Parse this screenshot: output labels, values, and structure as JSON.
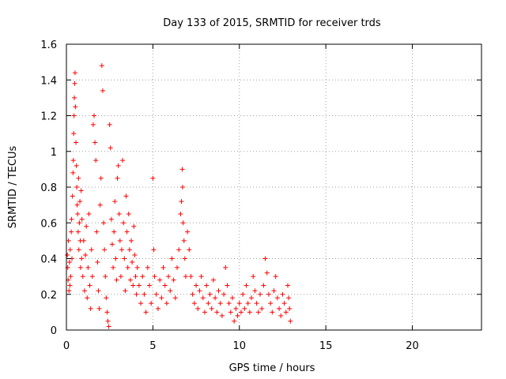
{
  "chart_data": {
    "type": "scatter",
    "title": "Day 133 of 2015, SRMTID for receiver trds",
    "xlabel": "GPS time / hours",
    "ylabel": "SRMTID / TECUs",
    "xlim": [
      0,
      24
    ],
    "ylim": [
      0,
      1.6
    ],
    "xticks": [
      "0",
      "5",
      "10",
      "15",
      "20"
    ],
    "yticks": [
      "0",
      "0.2",
      "0.4",
      "0.6",
      "0.8",
      "1",
      "1.2",
      "1.4",
      "1.6"
    ],
    "grid": true,
    "marker": "+",
    "color": "#ff0000",
    "series": [
      {
        "name": "SRMTID",
        "points": [
          [
            0.05,
            0.42
          ],
          [
            0.08,
            0.35
          ],
          [
            0.1,
            0.28
          ],
          [
            0.12,
            0.5
          ],
          [
            0.15,
            0.22
          ],
          [
            0.18,
            0.38
          ],
          [
            0.2,
            0.25
          ],
          [
            0.22,
            0.45
          ],
          [
            0.25,
            0.3
          ],
          [
            0.28,
            0.55
          ],
          [
            0.3,
            0.62
          ],
          [
            0.32,
            0.4
          ],
          [
            0.35,
            0.75
          ],
          [
            0.38,
            0.88
          ],
          [
            0.4,
            0.95
          ],
          [
            0.42,
            1.1
          ],
          [
            0.44,
            1.2
          ],
          [
            0.46,
            1.3
          ],
          [
            0.48,
            1.38
          ],
          [
            0.5,
            1.44
          ],
          [
            0.52,
            1.25
          ],
          [
            0.55,
            1.05
          ],
          [
            0.58,
            0.92
          ],
          [
            0.6,
            0.8
          ],
          [
            0.62,
            0.7
          ],
          [
            0.65,
            0.65
          ],
          [
            0.68,
            0.55
          ],
          [
            0.7,
            0.85
          ],
          [
            0.72,
            0.45
          ],
          [
            0.75,
            0.6
          ],
          [
            0.78,
            0.72
          ],
          [
            0.8,
            0.5
          ],
          [
            0.82,
            0.35
          ],
          [
            0.85,
            0.78
          ],
          [
            0.88,
            0.4
          ],
          [
            0.9,
            0.62
          ],
          [
            0.95,
            0.3
          ],
          [
            1.0,
            0.5
          ],
          [
            1.05,
            0.22
          ],
          [
            1.1,
            0.42
          ],
          [
            1.15,
            0.58
          ],
          [
            1.2,
            0.18
          ],
          [
            1.25,
            0.35
          ],
          [
            1.3,
            0.65
          ],
          [
            1.35,
            0.25
          ],
          [
            1.4,
            0.12
          ],
          [
            1.45,
            0.45
          ],
          [
            1.5,
            0.3
          ],
          [
            1.55,
            1.15
          ],
          [
            1.6,
            1.2
          ],
          [
            1.65,
            1.05
          ],
          [
            1.7,
            0.95
          ],
          [
            1.75,
            0.55
          ],
          [
            1.8,
            0.38
          ],
          [
            1.85,
            0.22
          ],
          [
            1.9,
            0.12
          ],
          [
            1.95,
            0.7
          ],
          [
            2.0,
            0.85
          ],
          [
            2.05,
            1.48
          ],
          [
            2.1,
            1.34
          ],
          [
            2.15,
            0.6
          ],
          [
            2.2,
            0.45
          ],
          [
            2.25,
            0.3
          ],
          [
            2.3,
            0.18
          ],
          [
            2.35,
            0.1
          ],
          [
            2.4,
            0.05
          ],
          [
            2.45,
            0.02
          ],
          [
            2.5,
            1.15
          ],
          [
            2.55,
            1.02
          ],
          [
            2.6,
            0.62
          ],
          [
            2.65,
            0.48
          ],
          [
            2.7,
            0.35
          ],
          [
            2.75,
            0.55
          ],
          [
            2.8,
            0.72
          ],
          [
            2.85,
            0.4
          ],
          [
            2.9,
            0.28
          ],
          [
            2.95,
            0.85
          ],
          [
            3.0,
            0.92
          ],
          [
            3.05,
            0.65
          ],
          [
            3.1,
            0.5
          ],
          [
            3.15,
            0.3
          ],
          [
            3.2,
            0.45
          ],
          [
            3.25,
            0.95
          ],
          [
            3.3,
            0.6
          ],
          [
            3.35,
            0.4
          ],
          [
            3.4,
            0.22
          ],
          [
            3.45,
            0.75
          ],
          [
            3.5,
            0.55
          ],
          [
            3.55,
            0.35
          ],
          [
            3.6,
            0.65
          ],
          [
            3.65,
            0.45
          ],
          [
            3.7,
            0.28
          ],
          [
            3.75,
            0.5
          ],
          [
            3.8,
            0.38
          ],
          [
            3.85,
            0.25
          ],
          [
            3.9,
            0.58
          ],
          [
            3.95,
            0.42
          ],
          [
            4.0,
            0.3
          ],
          [
            4.05,
            0.2
          ],
          [
            4.1,
            0.35
          ],
          [
            4.2,
            0.25
          ],
          [
            4.3,
            0.15
          ],
          [
            4.4,
            0.3
          ],
          [
            4.5,
            0.2
          ],
          [
            4.6,
            0.1
          ],
          [
            4.7,
            0.35
          ],
          [
            4.8,
            0.25
          ],
          [
            4.9,
            0.15
          ],
          [
            5.0,
            0.85
          ],
          [
            5.05,
            0.45
          ],
          [
            5.1,
            0.3
          ],
          [
            5.2,
            0.2
          ],
          [
            5.3,
            0.12
          ],
          [
            5.4,
            0.28
          ],
          [
            5.5,
            0.18
          ],
          [
            5.6,
            0.35
          ],
          [
            5.7,
            0.25
          ],
          [
            5.8,
            0.15
          ],
          [
            5.9,
            0.3
          ],
          [
            6.0,
            0.22
          ],
          [
            6.1,
            0.4
          ],
          [
            6.2,
            0.28
          ],
          [
            6.3,
            0.18
          ],
          [
            6.4,
            0.35
          ],
          [
            6.5,
            0.45
          ],
          [
            6.6,
            0.65
          ],
          [
            6.65,
            0.72
          ],
          [
            6.7,
            0.9
          ],
          [
            6.72,
            0.8
          ],
          [
            6.75,
            0.6
          ],
          [
            6.8,
            0.5
          ],
          [
            6.85,
            0.4
          ],
          [
            6.9,
            0.3
          ],
          [
            7.0,
            0.55
          ],
          [
            7.1,
            0.45
          ],
          [
            7.2,
            0.3
          ],
          [
            7.3,
            0.2
          ],
          [
            7.4,
            0.15
          ],
          [
            7.5,
            0.25
          ],
          [
            7.6,
            0.12
          ],
          [
            7.7,
            0.22
          ],
          [
            7.8,
            0.3
          ],
          [
            7.9,
            0.18
          ],
          [
            8.0,
            0.1
          ],
          [
            8.1,
            0.25
          ],
          [
            8.2,
            0.15
          ],
          [
            8.3,
            0.2
          ],
          [
            8.4,
            0.12
          ],
          [
            8.5,
            0.28
          ],
          [
            8.6,
            0.18
          ],
          [
            8.7,
            0.1
          ],
          [
            8.8,
            0.22
          ],
          [
            8.9,
            0.15
          ],
          [
            9.0,
            0.08
          ],
          [
            9.1,
            0.2
          ],
          [
            9.2,
            0.35
          ],
          [
            9.3,
            0.25
          ],
          [
            9.4,
            0.15
          ],
          [
            9.5,
            0.1
          ],
          [
            9.6,
            0.18
          ],
          [
            9.7,
            0.05
          ],
          [
            9.8,
            0.12
          ],
          [
            9.9,
            0.08
          ],
          [
            10.0,
            0.15
          ],
          [
            10.1,
            0.1
          ],
          [
            10.2,
            0.2
          ],
          [
            10.3,
            0.12
          ],
          [
            10.4,
            0.25
          ],
          [
            10.5,
            0.15
          ],
          [
            10.6,
            0.1
          ],
          [
            10.7,
            0.18
          ],
          [
            10.8,
            0.3
          ],
          [
            10.9,
            0.22
          ],
          [
            11.0,
            0.15
          ],
          [
            11.1,
            0.1
          ],
          [
            11.2,
            0.2
          ],
          [
            11.3,
            0.12
          ],
          [
            11.4,
            0.25
          ],
          [
            11.5,
            0.4
          ],
          [
            11.6,
            0.32
          ],
          [
            11.7,
            0.2
          ],
          [
            11.8,
            0.15
          ],
          [
            11.9,
            0.1
          ],
          [
            12.0,
            0.22
          ],
          [
            12.1,
            0.3
          ],
          [
            12.2,
            0.18
          ],
          [
            12.3,
            0.12
          ],
          [
            12.4,
            0.08
          ],
          [
            12.5,
            0.2
          ],
          [
            12.6,
            0.15
          ],
          [
            12.7,
            0.1
          ],
          [
            12.8,
            0.25
          ],
          [
            12.85,
            0.18
          ],
          [
            12.9,
            0.12
          ],
          [
            12.95,
            0.05
          ]
        ]
      }
    ]
  }
}
